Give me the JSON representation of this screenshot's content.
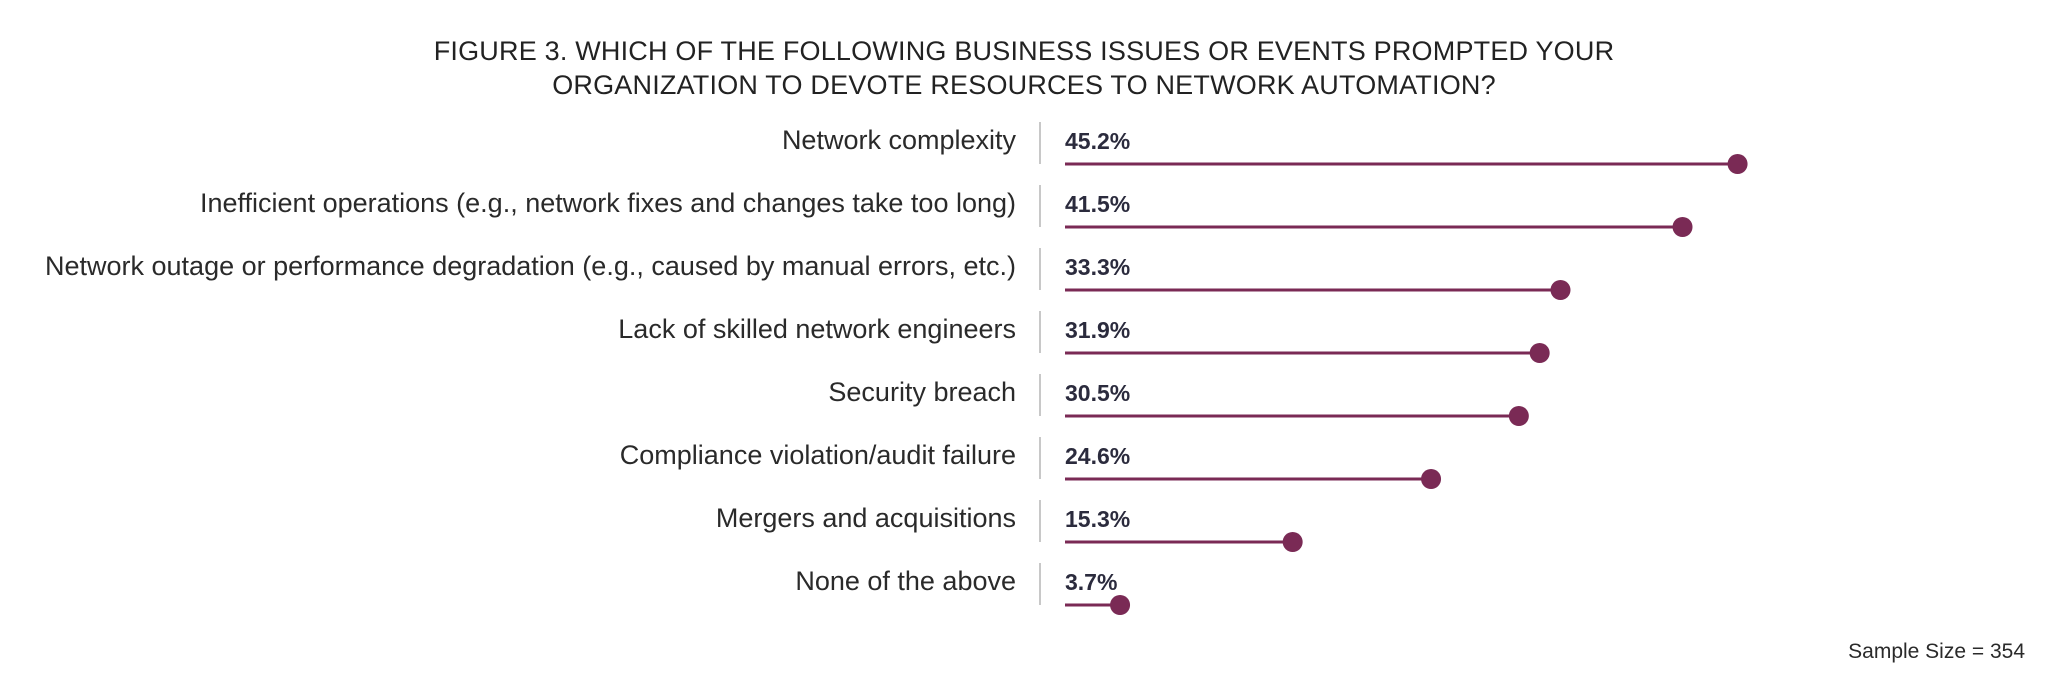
{
  "chart_data": {
    "type": "bar",
    "style": "lollipop",
    "orientation": "horizontal",
    "title_lines": [
      "FIGURE 3. WHICH OF THE FOLLOWING BUSINESS ISSUES OR EVENTS PROMPTED YOUR",
      "ORGANIZATION TO DEVOTE RESOURCES TO NETWORK AUTOMATION?"
    ],
    "categories": [
      "Network complexity",
      "Inefficient operations (e.g., network fixes and changes take too long)",
      "Network outage or performance degradation (e.g., caused by manual errors, etc.)",
      "Lack of skilled network engineers",
      "Security breach",
      "Compliance violation/audit failure",
      "Mergers and acquisitions",
      "None of the above"
    ],
    "values": [
      45.2,
      41.5,
      33.3,
      31.9,
      30.5,
      24.6,
      15.3,
      3.7
    ],
    "value_labels": [
      "45.2%",
      "41.5%",
      "33.3%",
      "31.9%",
      "30.5%",
      "24.6%",
      "15.3%",
      "3.7%"
    ],
    "unit": "%",
    "xlim": [
      0,
      50
    ],
    "grid": false,
    "legend": "none",
    "footnote": "Sample Size = 354"
  },
  "colors": {
    "lollipop": "#7a2a55",
    "divider": "#c8c8c8",
    "value_text": "#2b2b3d",
    "label_text": "#2a2a2a"
  }
}
